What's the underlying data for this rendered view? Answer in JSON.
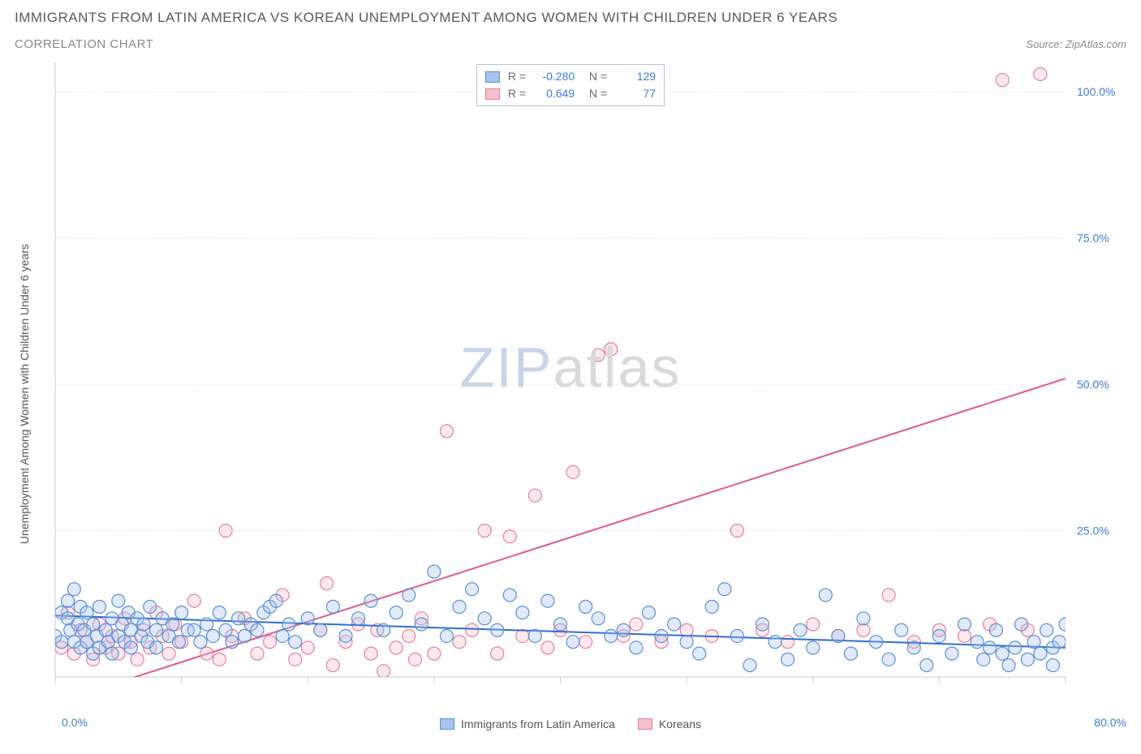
{
  "title": "IMMIGRANTS FROM LATIN AMERICA VS KOREAN UNEMPLOYMENT AMONG WOMEN WITH CHILDREN UNDER 6 YEARS",
  "subtitle": "CORRELATION CHART",
  "source": "Source: ZipAtlas.com",
  "ylabel": "Unemployment Among Women with Children Under 6 years",
  "watermark": {
    "part1": "ZIP",
    "part2": "atlas"
  },
  "chart": {
    "type": "scatter",
    "background_color": "#ffffff",
    "grid_color": "#e2e2e2",
    "grid_dash": "2,3",
    "axis_line_color": "#cccccc",
    "tick_color": "#cccccc",
    "xlim": [
      0,
      80
    ],
    "ylim": [
      0,
      105
    ],
    "xticks": [
      0,
      10,
      20,
      30,
      40,
      50,
      60,
      70,
      80
    ],
    "xtick_left_label": "0.0%",
    "xtick_right_label": "80.0%",
    "yticks": [
      {
        "v": 25,
        "label": "25.0%"
      },
      {
        "v": 50,
        "label": "50.0%"
      },
      {
        "v": 75,
        "label": "75.0%"
      },
      {
        "v": 100,
        "label": "100.0%"
      }
    ],
    "ytick_label_color": "#3b7dd8",
    "ytick_fontsize": 14,
    "marker_radius": 8,
    "marker_stroke_width": 1.2,
    "marker_fill_opacity": 0.35,
    "trend_line_width": 2,
    "series": [
      {
        "name": "Immigrants from Latin America",
        "color_fill": "#a7c4ec",
        "color_stroke": "#5a8fd6",
        "trend_color": "#2e6fd0",
        "R": "-0.280",
        "N": "129",
        "trend": {
          "x1": 0,
          "y1": 10.5,
          "x2": 80,
          "y2": 5.0
        },
        "points": [
          [
            0,
            7
          ],
          [
            0.5,
            11
          ],
          [
            0.5,
            6
          ],
          [
            1,
            10
          ],
          [
            1,
            13
          ],
          [
            1.2,
            8
          ],
          [
            1.5,
            6
          ],
          [
            1.5,
            15
          ],
          [
            1.8,
            9
          ],
          [
            2,
            12
          ],
          [
            2,
            5
          ],
          [
            2.3,
            8
          ],
          [
            2.5,
            11
          ],
          [
            2.5,
            6
          ],
          [
            3,
            9
          ],
          [
            3,
            4
          ],
          [
            3.3,
            7
          ],
          [
            3.5,
            12
          ],
          [
            3.5,
            5
          ],
          [
            4,
            8
          ],
          [
            4.2,
            6
          ],
          [
            4.5,
            10
          ],
          [
            4.5,
            4
          ],
          [
            5,
            7
          ],
          [
            5,
            13
          ],
          [
            5.3,
            9
          ],
          [
            5.5,
            6
          ],
          [
            5.8,
            11
          ],
          [
            6,
            8
          ],
          [
            6,
            5
          ],
          [
            6.5,
            10
          ],
          [
            6.8,
            7
          ],
          [
            7,
            9
          ],
          [
            7.3,
            6
          ],
          [
            7.5,
            12
          ],
          [
            8,
            8
          ],
          [
            8,
            5
          ],
          [
            8.5,
            10
          ],
          [
            9,
            7
          ],
          [
            9.3,
            9
          ],
          [
            9.8,
            6
          ],
          [
            10,
            11
          ],
          [
            10.5,
            8
          ],
          [
            11,
            8
          ],
          [
            11.5,
            6
          ],
          [
            12,
            9
          ],
          [
            12.5,
            7
          ],
          [
            13,
            11
          ],
          [
            13.5,
            8
          ],
          [
            14,
            6
          ],
          [
            14.5,
            10
          ],
          [
            15,
            7
          ],
          [
            15.5,
            9
          ],
          [
            16,
            8
          ],
          [
            16.5,
            11
          ],
          [
            17,
            12
          ],
          [
            17.5,
            13
          ],
          [
            18,
            7
          ],
          [
            18.5,
            9
          ],
          [
            19,
            6
          ],
          [
            20,
            10
          ],
          [
            21,
            8
          ],
          [
            22,
            12
          ],
          [
            23,
            7
          ],
          [
            24,
            10
          ],
          [
            25,
            13
          ],
          [
            26,
            8
          ],
          [
            27,
            11
          ],
          [
            28,
            14
          ],
          [
            29,
            9
          ],
          [
            30,
            18
          ],
          [
            31,
            7
          ],
          [
            32,
            12
          ],
          [
            33,
            15
          ],
          [
            34,
            10
          ],
          [
            35,
            8
          ],
          [
            36,
            14
          ],
          [
            37,
            11
          ],
          [
            38,
            7
          ],
          [
            39,
            13
          ],
          [
            40,
            9
          ],
          [
            41,
            6
          ],
          [
            42,
            12
          ],
          [
            43,
            10
          ],
          [
            44,
            7
          ],
          [
            45,
            8
          ],
          [
            46,
            5
          ],
          [
            47,
            11
          ],
          [
            48,
            7
          ],
          [
            49,
            9
          ],
          [
            50,
            6
          ],
          [
            51,
            4
          ],
          [
            52,
            12
          ],
          [
            53,
            15
          ],
          [
            54,
            7
          ],
          [
            55,
            2
          ],
          [
            56,
            9
          ],
          [
            57,
            6
          ],
          [
            58,
            3
          ],
          [
            59,
            8
          ],
          [
            60,
            5
          ],
          [
            61,
            14
          ],
          [
            62,
            7
          ],
          [
            63,
            4
          ],
          [
            64,
            10
          ],
          [
            65,
            6
          ],
          [
            66,
            3
          ],
          [
            67,
            8
          ],
          [
            68,
            5
          ],
          [
            69,
            2
          ],
          [
            70,
            7
          ],
          [
            71,
            4
          ],
          [
            72,
            9
          ],
          [
            73,
            6
          ],
          [
            73.5,
            3
          ],
          [
            74,
            5
          ],
          [
            74.5,
            8
          ],
          [
            75,
            4
          ],
          [
            75.5,
            2
          ],
          [
            76,
            5
          ],
          [
            76.5,
            9
          ],
          [
            77,
            3
          ],
          [
            77.5,
            6
          ],
          [
            78,
            4
          ],
          [
            78.5,
            8
          ],
          [
            79,
            2
          ],
          [
            79,
            5
          ],
          [
            79.5,
            6
          ],
          [
            80,
            9
          ]
        ]
      },
      {
        "name": "Koreans",
        "color_fill": "#f6c0cc",
        "color_stroke": "#e6809c",
        "trend_color": "#e05a8a",
        "R": "0.649",
        "N": "77",
        "trend": {
          "x1": 2,
          "y1": -3,
          "x2": 80,
          "y2": 51
        },
        "points": [
          [
            0.5,
            5
          ],
          [
            1,
            11
          ],
          [
            1.5,
            4
          ],
          [
            2,
            8
          ],
          [
            2.5,
            6
          ],
          [
            3,
            3
          ],
          [
            3.5,
            9
          ],
          [
            4,
            5
          ],
          [
            4.5,
            7
          ],
          [
            5,
            4
          ],
          [
            5.5,
            10
          ],
          [
            6,
            6
          ],
          [
            6.5,
            3
          ],
          [
            7,
            8
          ],
          [
            7.5,
            5
          ],
          [
            8,
            11
          ],
          [
            8.5,
            7
          ],
          [
            9,
            4
          ],
          [
            9.5,
            9
          ],
          [
            10,
            6
          ],
          [
            11,
            13
          ],
          [
            12,
            4
          ],
          [
            13,
            3
          ],
          [
            13.5,
            25
          ],
          [
            14,
            7
          ],
          [
            15,
            10
          ],
          [
            16,
            4
          ],
          [
            17,
            6
          ],
          [
            18,
            14
          ],
          [
            19,
            3
          ],
          [
            20,
            5
          ],
          [
            21,
            8
          ],
          [
            21.5,
            16
          ],
          [
            22,
            2
          ],
          [
            23,
            6
          ],
          [
            24,
            9
          ],
          [
            25,
            4
          ],
          [
            25.5,
            8
          ],
          [
            26,
            1
          ],
          [
            27,
            5
          ],
          [
            28,
            7
          ],
          [
            28.5,
            3
          ],
          [
            29,
            10
          ],
          [
            30,
            4
          ],
          [
            31,
            42
          ],
          [
            32,
            6
          ],
          [
            33,
            8
          ],
          [
            34,
            25
          ],
          [
            35,
            4
          ],
          [
            36,
            24
          ],
          [
            37,
            7
          ],
          [
            38,
            31
          ],
          [
            39,
            5
          ],
          [
            40,
            8
          ],
          [
            41,
            35
          ],
          [
            42,
            6
          ],
          [
            43,
            55
          ],
          [
            44,
            56
          ],
          [
            45,
            7
          ],
          [
            46,
            9
          ],
          [
            48,
            6
          ],
          [
            50,
            8
          ],
          [
            52,
            7
          ],
          [
            54,
            25
          ],
          [
            56,
            8
          ],
          [
            58,
            6
          ],
          [
            60,
            9
          ],
          [
            62,
            7
          ],
          [
            64,
            8
          ],
          [
            66,
            14
          ],
          [
            68,
            6
          ],
          [
            70,
            8
          ],
          [
            72,
            7
          ],
          [
            74,
            9
          ],
          [
            75,
            102
          ],
          [
            77,
            8
          ],
          [
            78,
            103
          ]
        ]
      }
    ],
    "legend": [
      {
        "label": "Immigrants from Latin America",
        "fill": "#a7c4ec",
        "stroke": "#5a8fd6"
      },
      {
        "label": "Koreans",
        "fill": "#f6c0cc",
        "stroke": "#e6809c"
      }
    ]
  }
}
